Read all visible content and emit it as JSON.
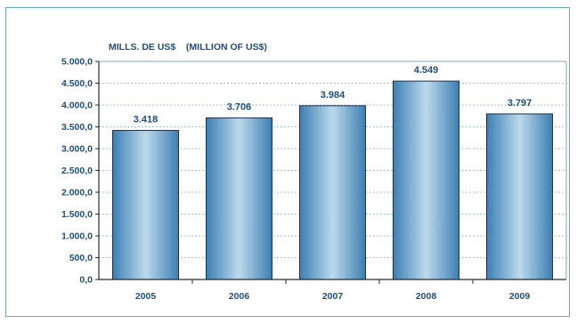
{
  "chart_data": {
    "type": "bar",
    "title": "MILLS. DE US$    (MILLION OF US$)",
    "categories": [
      "2005",
      "2006",
      "2007",
      "2008",
      "2009"
    ],
    "values": [
      3418,
      3706,
      3984,
      4549,
      3797
    ],
    "value_labels": [
      "3.418",
      "3.706",
      "3.984",
      "4.549",
      "3.797"
    ],
    "ylim": [
      0,
      5000
    ],
    "yticks": [
      0,
      500,
      1000,
      1500,
      2000,
      2500,
      3000,
      3500,
      4000,
      4500,
      5000
    ],
    "ytick_labels": [
      "0,0",
      "500,0",
      "1.000,0",
      "1.500,0",
      "2.000,0",
      "2.500,0",
      "3.000,0",
      "3.500,0",
      "4.000,0",
      "4.500,0",
      "5.000,0"
    ],
    "grid": true,
    "legend": "none",
    "colors": {
      "bar_dark": "#3d7fb2",
      "bar_light": "#bcd9ec",
      "bar_edge": "#1f2f4a",
      "axis": "#2a2a2a",
      "gridline": "#7aa7c7",
      "text": "#1f4e79",
      "border": "#6aa6c8"
    }
  }
}
